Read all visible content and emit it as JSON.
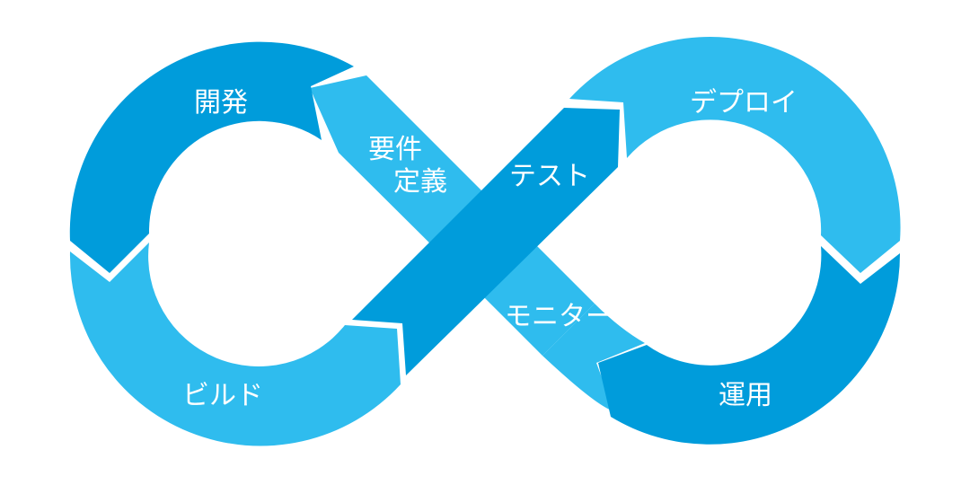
{
  "colors": {
    "background": "#ffffff",
    "dark_blue": "#009cdb",
    "light_blue": "#2fbcee",
    "text": "#ffffff"
  },
  "segments": {
    "requirements": {
      "line1": "要件",
      "line2": "定義",
      "color": "#2fbcee"
    },
    "development": {
      "label": "開発",
      "color": "#009cdb"
    },
    "build": {
      "label": "ビルド",
      "color": "#2fbcee"
    },
    "test": {
      "label": "テスト",
      "color": "#009cdb"
    },
    "deploy": {
      "label": "デプロイ",
      "color": "#2fbcee"
    },
    "operation": {
      "label": "運用",
      "color": "#009cdb"
    },
    "monitor": {
      "label": "モニター",
      "color": "#2fbcee"
    }
  }
}
